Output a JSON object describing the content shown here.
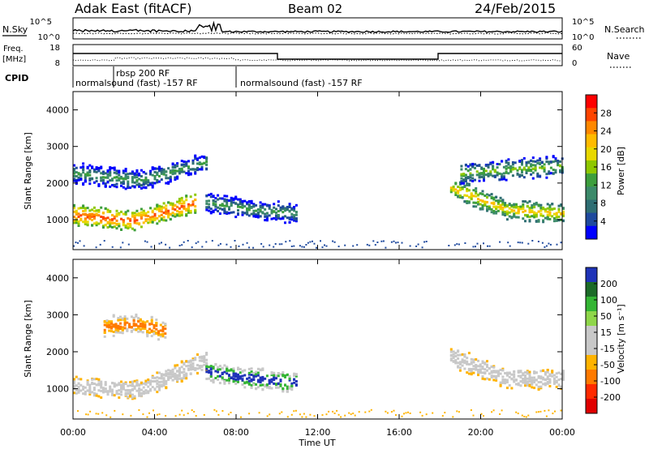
{
  "header": {
    "station": "Adak East (fitACF)",
    "beam": "Beam 02",
    "date": "24/Feb/2015"
  },
  "panels": {
    "nsky_label": "N.Sky",
    "nsearch_label": "N.Search",
    "freq_label_line1": "Freq.",
    "freq_label_line2": "[MHz]",
    "nave_label": "Nave",
    "cpid_label": "CPID",
    "noise_ticks": [
      "10^5",
      "10^0"
    ],
    "noise_right_ticks": [
      "10^5",
      "10^0"
    ],
    "freq_ticks": [
      "18",
      "8"
    ],
    "nave_ticks": [
      "60",
      "0"
    ],
    "cpid_segments": [
      {
        "start_hour": 0.0,
        "end_hour": 8.0,
        "text": "normalsound (fast) -157 RF"
      },
      {
        "start_hour": 2.0,
        "end_hour": 8.0,
        "text": "rbsp 200 RF"
      },
      {
        "start_hour": 8.0,
        "end_hour": 24.0,
        "text": "normalsound (fast) -157 RF"
      }
    ]
  },
  "axes": {
    "xlabel": "Time UT",
    "x_ticks": [
      "00:00",
      "04:00",
      "08:00",
      "12:00",
      "16:00",
      "20:00",
      "00:00"
    ],
    "ylabel_power": "Slant Range [km]",
    "ylabel_velocity": "Slant Range [km]",
    "y_ticks": [
      "1000",
      "2000",
      "3000",
      "4000"
    ]
  },
  "colorbars": {
    "power": {
      "label": "Power [dB]",
      "ticks": [
        "28",
        "24",
        "20",
        "16",
        "12",
        "8",
        "4"
      ],
      "colors": [
        "#ff0000",
        "#ff4400",
        "#ff8800",
        "#ffbb00",
        "#e8d800",
        "#8fc800",
        "#3d9e3d",
        "#3c8a6a",
        "#2f6e73",
        "#1f4a9e",
        "#0000ff"
      ]
    },
    "velocity": {
      "label": "Velocity [m s⁻¹]",
      "ticks": [
        "200",
        "100",
        "50",
        "15",
        "-15",
        "-50",
        "-100",
        "-200"
      ],
      "colors": [
        "#1f33b8",
        "#1c6b28",
        "#34b534",
        "#8fd64a",
        "#c8c8c8",
        "#c8c8c8",
        "#ffb300",
        "#ff7a00",
        "#ff2a00",
        "#e00000"
      ]
    }
  },
  "chart_data": [
    {
      "type": "heatmap",
      "name": "power",
      "x_range_hours": [
        0,
        24
      ],
      "y_range_km": [
        180,
        4500
      ],
      "colorbar_range_db": [
        0,
        30
      ],
      "features": [
        {
          "start_hour": 0.0,
          "end_hour": 6.0,
          "range_center_km": [
            1150,
            1000,
            1500
          ],
          "intensity_db": 26
        },
        {
          "start_hour": 0.0,
          "end_hour": 6.5,
          "range_center_km": [
            2300,
            2100,
            2600
          ],
          "intensity_db": 12
        },
        {
          "start_hour": 6.5,
          "end_hour": 11.0,
          "range_center_km": [
            1500,
            1300,
            1200
          ],
          "intensity_db": 12
        },
        {
          "start_hour": 18.5,
          "end_hour": 24.0,
          "range_center_km": [
            1900,
            1300,
            1200
          ],
          "intensity_db": 20
        },
        {
          "start_hour": 19.0,
          "end_hour": 24.0,
          "range_center_km": [
            2300,
            2400,
            2500
          ],
          "intensity_db": 14
        }
      ]
    },
    {
      "type": "heatmap",
      "name": "velocity",
      "x_range_hours": [
        0,
        24
      ],
      "y_range_km": [
        180,
        4500
      ],
      "colorbar_range_ms": [
        -200,
        200
      ],
      "features": [
        {
          "start_hour": 0.0,
          "end_hour": 6.5,
          "range_center_km": [
            1100,
            1000,
            1800
          ],
          "velocity_ms": 0
        },
        {
          "start_hour": 6.5,
          "end_hour": 11.0,
          "range_center_km": [
            1500,
            1300,
            1200
          ],
          "velocity_ms": 120
        },
        {
          "start_hour": 18.5,
          "end_hour": 24.0,
          "range_center_km": [
            1900,
            1300,
            1300
          ],
          "velocity_ms": 0
        },
        {
          "start_hour": 1.5,
          "end_hour": 4.5,
          "range_center_km": [
            2700,
            2800,
            2600
          ],
          "velocity_ms": -60
        }
      ]
    }
  ]
}
